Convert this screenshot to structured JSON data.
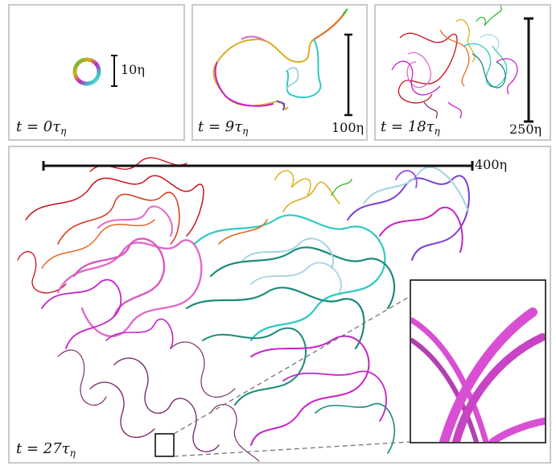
{
  "panels": [
    {
      "time_label": "t = 0τ",
      "time_subscript": "η",
      "scale_label": "10η"
    },
    {
      "time_label": "t = 9τ",
      "time_subscript": "η",
      "scale_label": "100η"
    },
    {
      "time_label": "t = 18τ",
      "time_subscript": "η",
      "scale_label": "250η"
    },
    {
      "time_label": "t = 27τ",
      "time_subscript": "η",
      "scale_label": "400η"
    }
  ],
  "colors": {
    "panel_border": "#c9c9c9",
    "filament_palette": [
      "#c8101b",
      "#e8691f",
      "#d8b01c",
      "#3dbb3a",
      "#30c9c2",
      "#1c8a7a",
      "#a2d5e3",
      "#7b3fd1",
      "#c622c8",
      "#e06ac9",
      "#7b2e6e"
    ],
    "inset_tube": "#d94fd4"
  }
}
